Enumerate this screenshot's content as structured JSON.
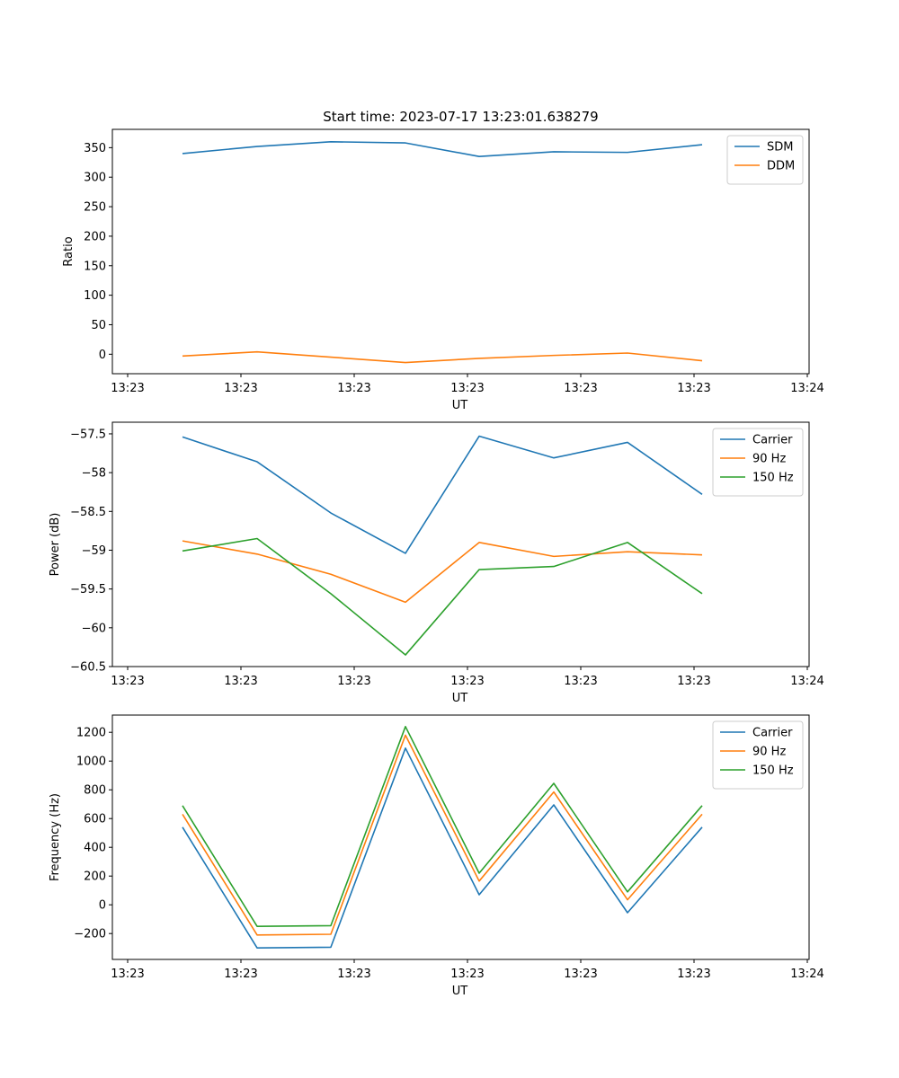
{
  "figure_title": "Start time: 2023-07-17 13:23:01.638279",
  "chart_data": [
    {
      "type": "line",
      "title": "Start time: 2023-07-17 13:23:01.638279",
      "xlabel": "UT",
      "ylabel": "Ratio",
      "x_tick_labels": [
        "13:23",
        "13:23",
        "13:23",
        "13:23",
        "13:23",
        "13:23",
        "13:24"
      ],
      "ylim": [
        -33,
        381
      ],
      "y_ticks": [
        0,
        50,
        100,
        150,
        200,
        250,
        300,
        350
      ],
      "legend_position": "top-right",
      "series": [
        {
          "name": "SDM",
          "color": "#1f77b4",
          "values": [
            340,
            352,
            360,
            358,
            335,
            343,
            342,
            355
          ]
        },
        {
          "name": "DDM",
          "color": "#ff7f0e",
          "values": [
            -3,
            4,
            -5,
            -14,
            -7,
            -2,
            2,
            -11
          ]
        }
      ]
    },
    {
      "type": "line",
      "title": "",
      "xlabel": "UT",
      "ylabel": "Power (dB)",
      "x_tick_labels": [
        "13:23",
        "13:23",
        "13:23",
        "13:23",
        "13:23",
        "13:23",
        "13:24"
      ],
      "ylim": [
        -60.5,
        -57.35
      ],
      "y_ticks": [
        -60.5,
        -60.0,
        -59.5,
        -59.0,
        -58.5,
        -58.0,
        -57.5
      ],
      "legend_position": "top-right",
      "series": [
        {
          "name": "Carrier",
          "color": "#1f77b4",
          "values": [
            -57.54,
            -57.86,
            -58.52,
            -59.04,
            -57.53,
            -57.81,
            -57.61,
            -58.28
          ]
        },
        {
          "name": "90 Hz",
          "color": "#ff7f0e",
          "values": [
            -58.88,
            -59.05,
            -59.31,
            -59.67,
            -58.9,
            -59.08,
            -59.02,
            -59.06
          ]
        },
        {
          "name": "150 Hz",
          "color": "#2ca02c",
          "values": [
            -59.01,
            -58.85,
            -59.56,
            -60.35,
            -59.25,
            -59.21,
            -58.9,
            -59.56
          ]
        }
      ]
    },
    {
      "type": "line",
      "title": "",
      "xlabel": "UT",
      "ylabel": "Frequency (Hz)",
      "x_tick_labels": [
        "13:23",
        "13:23",
        "13:23",
        "13:23",
        "13:23",
        "13:23",
        "13:24"
      ],
      "ylim": [
        -380,
        1320
      ],
      "y_ticks": [
        -200,
        0,
        200,
        400,
        600,
        800,
        1000,
        1200
      ],
      "legend_position": "top-right",
      "series": [
        {
          "name": "Carrier",
          "color": "#1f77b4",
          "values": [
            540,
            -300,
            -295,
            1090,
            70,
            695,
            -55,
            540
          ]
        },
        {
          "name": "90 Hz",
          "color": "#ff7f0e",
          "values": [
            630,
            -210,
            -205,
            1180,
            165,
            785,
            35,
            630
          ]
        },
        {
          "name": "150 Hz",
          "color": "#2ca02c",
          "values": [
            690,
            -150,
            -145,
            1240,
            220,
            845,
            90,
            690
          ]
        }
      ]
    }
  ]
}
